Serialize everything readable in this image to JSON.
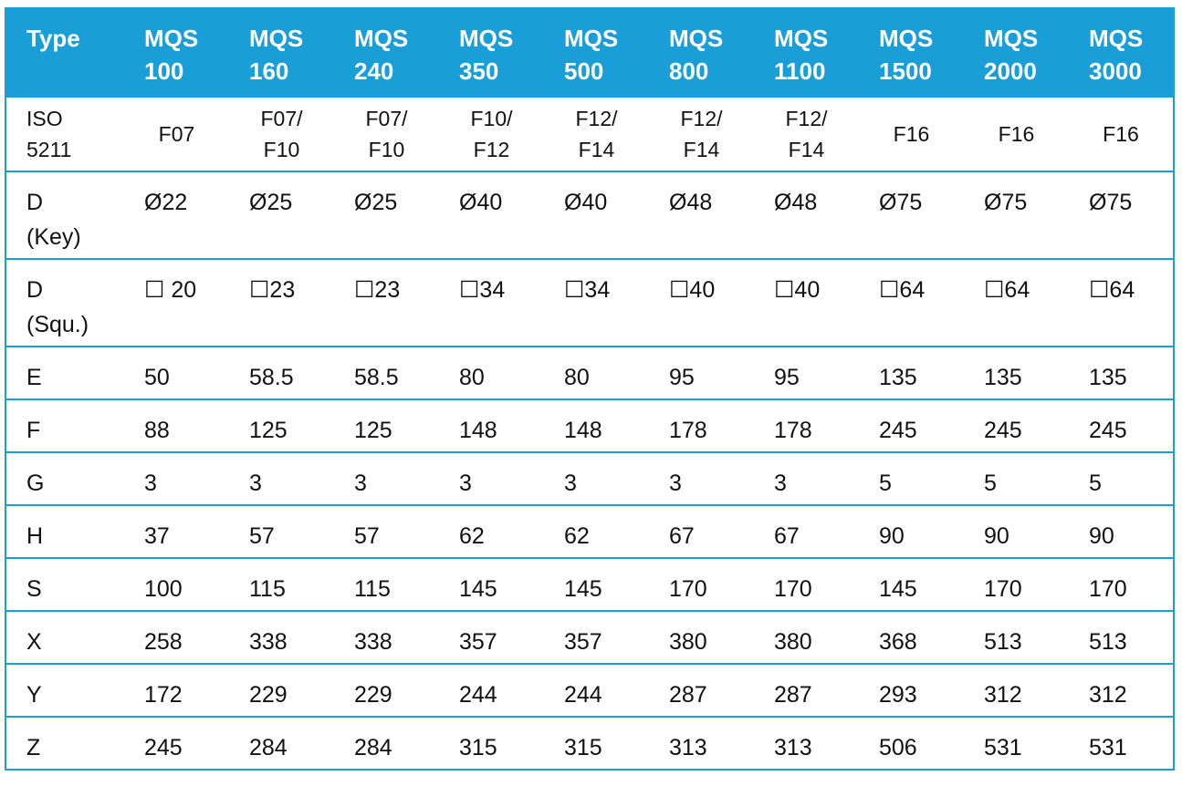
{
  "table": {
    "header": [
      [
        "Type"
      ],
      [
        "MQS",
        "100"
      ],
      [
        "MQS",
        "160"
      ],
      [
        "MQS",
        "240"
      ],
      [
        "MQS",
        "350"
      ],
      [
        "MQS",
        "500"
      ],
      [
        "MQS",
        "800"
      ],
      [
        "MQS",
        "1100"
      ],
      [
        "MQS",
        "1500"
      ],
      [
        "MQS",
        "2000"
      ],
      [
        "MQS",
        "3000"
      ]
    ],
    "rows": [
      [
        [
          "ISO",
          "5211"
        ],
        [
          "F07"
        ],
        [
          "F07/",
          "F10"
        ],
        [
          "F07/",
          "F10"
        ],
        [
          "F10/",
          "F12"
        ],
        [
          "F12/",
          "F14"
        ],
        [
          "F12/",
          "F14"
        ],
        [
          "F12/",
          "F14"
        ],
        [
          "F16"
        ],
        [
          "F16"
        ],
        [
          "F16"
        ]
      ],
      [
        [
          "D",
          "(Key)"
        ],
        [
          "Ø22"
        ],
        [
          "Ø25"
        ],
        [
          "Ø25"
        ],
        [
          "Ø40"
        ],
        [
          "Ø40"
        ],
        [
          "Ø48"
        ],
        [
          "Ø48"
        ],
        [
          "Ø75"
        ],
        [
          "Ø75"
        ],
        [
          "Ø75"
        ]
      ],
      [
        [
          "D",
          "(Squ.)"
        ],
        [
          "☐ 20"
        ],
        [
          "☐23"
        ],
        [
          "☐23"
        ],
        [
          "☐34"
        ],
        [
          "☐34"
        ],
        [
          "☐40"
        ],
        [
          "☐40"
        ],
        [
          "☐64"
        ],
        [
          "☐64"
        ],
        [
          "☐64"
        ]
      ],
      [
        [
          "E"
        ],
        [
          "50"
        ],
        [
          "58.5"
        ],
        [
          "58.5"
        ],
        [
          "80"
        ],
        [
          "80"
        ],
        [
          "95"
        ],
        [
          "95"
        ],
        [
          "135"
        ],
        [
          "135"
        ],
        [
          "135"
        ]
      ],
      [
        [
          "F"
        ],
        [
          "88"
        ],
        [
          "125"
        ],
        [
          "125"
        ],
        [
          "148"
        ],
        [
          "148"
        ],
        [
          "178"
        ],
        [
          "178"
        ],
        [
          "245"
        ],
        [
          "245"
        ],
        [
          "245"
        ]
      ],
      [
        [
          "G"
        ],
        [
          "3"
        ],
        [
          "3"
        ],
        [
          "3"
        ],
        [
          "3"
        ],
        [
          "3"
        ],
        [
          "3"
        ],
        [
          "3"
        ],
        [
          "5"
        ],
        [
          "5"
        ],
        [
          "5"
        ]
      ],
      [
        [
          "H"
        ],
        [
          "37"
        ],
        [
          "57"
        ],
        [
          "57"
        ],
        [
          "62"
        ],
        [
          "62"
        ],
        [
          "67"
        ],
        [
          "67"
        ],
        [
          "90"
        ],
        [
          "90"
        ],
        [
          "90"
        ]
      ],
      [
        [
          "S"
        ],
        [
          "100"
        ],
        [
          "115"
        ],
        [
          "115"
        ],
        [
          "145"
        ],
        [
          "145"
        ],
        [
          "170"
        ],
        [
          "170"
        ],
        [
          "145"
        ],
        [
          "170"
        ],
        [
          "170"
        ]
      ],
      [
        [
          "X"
        ],
        [
          "258"
        ],
        [
          "338"
        ],
        [
          "338"
        ],
        [
          "357"
        ],
        [
          "357"
        ],
        [
          "380"
        ],
        [
          "380"
        ],
        [
          "368"
        ],
        [
          "513"
        ],
        [
          "513"
        ]
      ],
      [
        [
          "Y"
        ],
        [
          "172"
        ],
        [
          "229"
        ],
        [
          "229"
        ],
        [
          "244"
        ],
        [
          "244"
        ],
        [
          "287"
        ],
        [
          "287"
        ],
        [
          "293"
        ],
        [
          "312"
        ],
        [
          "312"
        ]
      ],
      [
        [
          "Z"
        ],
        [
          "245"
        ],
        [
          "284"
        ],
        [
          "284"
        ],
        [
          "315"
        ],
        [
          "315"
        ],
        [
          "313"
        ],
        [
          "313"
        ],
        [
          "506"
        ],
        [
          "531"
        ],
        [
          "531"
        ]
      ]
    ]
  }
}
